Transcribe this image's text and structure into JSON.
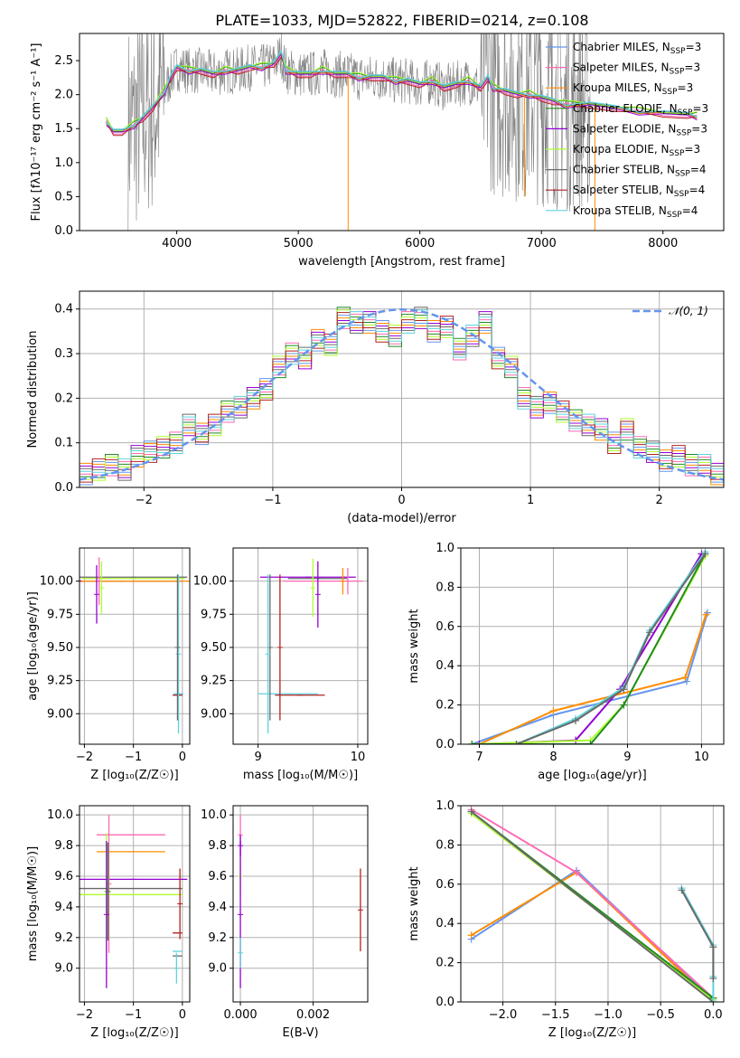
{
  "figure": {
    "title": "PLATE=1033, MJD=52822, FIBERID=0214, z=0.108",
    "series_colors": [
      "#6495ED",
      "#FF69B4",
      "#FF8C00",
      "#228B22",
      "#9400D3",
      "#ADFF2F",
      "#696969",
      "#B22222",
      "#5FD3DB"
    ]
  },
  "chart_data": [
    {
      "type": "line",
      "title": "PLATE=1033, MJD=52822, FIBERID=0214, z=0.108",
      "xlabel": "wavelength [Angstrom, rest frame]",
      "ylabel": "Flux [fλ10⁻¹⁷ erg cm⁻² s⁻¹ A⁻¹]",
      "xlim": [
        3200,
        8500
      ],
      "ylim": [
        0,
        2.9
      ],
      "xticks": [
        4000,
        5000,
        6000,
        7000,
        8000
      ],
      "yticks": [
        0.0,
        0.5,
        1.0,
        1.5,
        2.0,
        2.5
      ],
      "grid": false,
      "legend_placement": "upper right",
      "legend": [
        {
          "label": "Chabrier MILES, N",
          "sub": "SSP",
          "suffix": "=3",
          "color": "#6495ED"
        },
        {
          "label": "Salpeter MILES, N",
          "sub": "SSP",
          "suffix": "=3",
          "color": "#FF69B4"
        },
        {
          "label": "Kroupa MILES, N",
          "sub": "SSP",
          "suffix": "=3",
          "color": "#FF8C00"
        },
        {
          "label": "Chabrier ELODIE, N",
          "sub": "SSP",
          "suffix": "=3",
          "color": "#228B22"
        },
        {
          "label": "Salpeter ELODIE, N",
          "sub": "SSP",
          "suffix": "=3",
          "color": "#9400D3"
        },
        {
          "label": "Kroupa ELODIE, N",
          "sub": "SSP",
          "suffix": "=3",
          "color": "#ADFF2F"
        },
        {
          "label": "Chabrier STELIB, N",
          "sub": "SSP",
          "suffix": "=4",
          "color": "#696969"
        },
        {
          "label": "Salpeter STELIB, N",
          "sub": "SSP",
          "suffix": "=4",
          "color": "#B22222"
        },
        {
          "label": "Kroupa STELIB, N",
          "sub": "SSP",
          "suffix": "=4",
          "color": "#5FD3DB"
        }
      ],
      "model_curve": {
        "x": [
          3420,
          3480,
          3550,
          3650,
          3720,
          3800,
          3900,
          3950,
          4000,
          4100,
          4200,
          4300,
          4400,
          4500,
          4600,
          4700,
          4800,
          4860,
          4900,
          5000,
          5100,
          5200,
          5300,
          5400,
          5500,
          5600,
          5700,
          5800,
          5900,
          6000,
          6100,
          6200,
          6300,
          6400,
          6500,
          6560,
          6600,
          6700,
          6800,
          6900,
          7000,
          7100,
          7200,
          7400,
          7600,
          7800,
          8000,
          8200,
          8280
        ],
        "y": [
          1.6,
          1.45,
          1.45,
          1.55,
          1.65,
          1.8,
          2.05,
          2.25,
          2.4,
          2.35,
          2.35,
          2.3,
          2.35,
          2.35,
          2.4,
          2.4,
          2.45,
          2.6,
          2.35,
          2.3,
          2.3,
          2.35,
          2.3,
          2.3,
          2.25,
          2.25,
          2.25,
          2.2,
          2.2,
          2.15,
          2.2,
          2.1,
          2.15,
          2.2,
          2.1,
          2.25,
          2.1,
          2.05,
          2.0,
          2.0,
          1.95,
          1.9,
          1.85,
          1.85,
          1.8,
          1.75,
          1.72,
          1.7,
          1.68
        ]
      }
    },
    {
      "type": "bar",
      "xlabel": "(data-model)/error",
      "ylabel": "Normed distribution",
      "xlim": [
        -2.5,
        2.5
      ],
      "ylim": [
        0,
        0.44
      ],
      "xticks": [
        -2,
        -1,
        0,
        1,
        2
      ],
      "yticks": [
        0.0,
        0.1,
        0.2,
        0.3,
        0.4
      ],
      "grid": true,
      "legend_placement": "upper right",
      "reference_curve": {
        "label": "𝒩(0, 1)",
        "mean": 0,
        "sigma": 1,
        "color": "#6495ED"
      },
      "bin_centers": [
        -2.45,
        -2.35,
        -2.25,
        -2.15,
        -2.05,
        -1.95,
        -1.85,
        -1.75,
        -1.65,
        -1.55,
        -1.45,
        -1.35,
        -1.25,
        -1.15,
        -1.05,
        -0.95,
        -0.85,
        -0.75,
        -0.65,
        -0.55,
        -0.45,
        -0.35,
        -0.25,
        -0.15,
        -0.05,
        0.05,
        0.15,
        0.25,
        0.35,
        0.45,
        0.55,
        0.65,
        0.75,
        0.85,
        0.95,
        1.05,
        1.15,
        1.25,
        1.35,
        1.45,
        1.55,
        1.65,
        1.75,
        1.85,
        1.95,
        2.05,
        2.15,
        2.25,
        2.35,
        2.45
      ],
      "counts": [
        0.03,
        0.04,
        0.05,
        0.04,
        0.07,
        0.08,
        0.09,
        0.1,
        0.14,
        0.12,
        0.14,
        0.17,
        0.18,
        0.2,
        0.22,
        0.27,
        0.3,
        0.29,
        0.33,
        0.32,
        0.38,
        0.37,
        0.37,
        0.35,
        0.34,
        0.37,
        0.38,
        0.35,
        0.36,
        0.31,
        0.34,
        0.37,
        0.29,
        0.27,
        0.2,
        0.18,
        0.19,
        0.17,
        0.15,
        0.14,
        0.13,
        0.1,
        0.13,
        0.09,
        0.08,
        0.06,
        0.07,
        0.05,
        0.05,
        0.03
      ]
    },
    {
      "type": "scatter",
      "xlabel": "Z [log₁₀(Z/Z☉)]",
      "ylabel": "age  [log₁₀(age/yr)]",
      "xlim": [
        -2.1,
        0.15
      ],
      "ylim": [
        8.77,
        10.25
      ],
      "xticks": [
        -2,
        -1,
        0
      ],
      "yticks": [
        9.0,
        9.25,
        9.5,
        9.75,
        10.0
      ],
      "grid": true,
      "points": [
        {
          "x": -1.25,
          "y": 10.0,
          "xerr": 1.25,
          "yerr": 0.0,
          "color": "#B22222"
        },
        {
          "x": -1.0,
          "y": 10.02,
          "xerr": 1.05,
          "yerr": 0.0,
          "color": "#ADFF2F"
        },
        {
          "x": -0.95,
          "y": 10.0,
          "xerr": 1.1,
          "yerr": 0.0,
          "color": "#FF8C00"
        },
        {
          "x": -1.0,
          "y": 10.03,
          "xerr": 1.1,
          "yerr": 0.0,
          "color": "#696969"
        },
        {
          "x": -1.7,
          "y": 10.0,
          "xerr": 0.0,
          "yerr": 0.18,
          "color": "#FF69B4"
        },
        {
          "x": -1.65,
          "y": 9.95,
          "xerr": 0.0,
          "yerr": 0.2,
          "color": "#ADFF2F"
        },
        {
          "x": -1.75,
          "y": 9.9,
          "xerr": 0.0,
          "yerr": 0.22,
          "color": "#9400D3"
        },
        {
          "x": -0.1,
          "y": 9.14,
          "xerr": 0.1,
          "yerr": 0.0,
          "color": "#B22222"
        },
        {
          "x": -0.08,
          "y": 9.15,
          "xerr": 0.1,
          "yerr": 0.0,
          "color": "#5FD3DB"
        },
        {
          "x": -0.08,
          "y": 9.45,
          "xerr": 0.0,
          "yerr": 0.6,
          "color": "#5FD3DB"
        },
        {
          "x": -0.1,
          "y": 9.5,
          "xerr": 0.0,
          "yerr": 0.55,
          "color": "#696969"
        }
      ]
    },
    {
      "type": "scatter",
      "xlabel": "mass [log₁₀(M/M☉)]",
      "ylabel": "",
      "xlim": [
        8.75,
        10.1
      ],
      "ylim": [
        8.77,
        10.25
      ],
      "xticks": [
        9,
        10
      ],
      "yticks": [
        9.0,
        9.25,
        9.5,
        9.75,
        10.0
      ],
      "grid": true,
      "points": [
        {
          "x": 9.5,
          "y": 10.03,
          "xerr": 0.48,
          "yerr": 0.0,
          "color": "#9400D3"
        },
        {
          "x": 9.65,
          "y": 10.0,
          "xerr": 0.4,
          "yerr": 0.0,
          "color": "#FF69B4"
        },
        {
          "x": 9.6,
          "y": 10.02,
          "xerr": 0.3,
          "yerr": 0.0,
          "color": "#696969"
        },
        {
          "x": 9.3,
          "y": 9.15,
          "xerr": 0.3,
          "yerr": 0.0,
          "color": "#5FD3DB"
        },
        {
          "x": 9.42,
          "y": 9.14,
          "xerr": 0.25,
          "yerr": 0.0,
          "color": "#B22222"
        },
        {
          "x": 9.12,
          "y": 9.5,
          "xerr": 0.0,
          "yerr": 0.55,
          "color": "#696969"
        },
        {
          "x": 9.22,
          "y": 9.5,
          "xerr": 0.0,
          "yerr": 0.55,
          "color": "#B22222"
        },
        {
          "x": 9.1,
          "y": 9.45,
          "xerr": 0.0,
          "yerr": 0.6,
          "color": "#5FD3DB"
        },
        {
          "x": 9.55,
          "y": 9.95,
          "xerr": 0.0,
          "yerr": 0.22,
          "color": "#ADFF2F"
        },
        {
          "x": 9.6,
          "y": 9.9,
          "xerr": 0.0,
          "yerr": 0.25,
          "color": "#9400D3"
        },
        {
          "x": 9.85,
          "y": 10.0,
          "xerr": 0.0,
          "yerr": 0.1,
          "color": "#FF8C00"
        },
        {
          "x": 9.9,
          "y": 10.0,
          "xerr": 0.0,
          "yerr": 0.1,
          "color": "#FF69B4"
        }
      ]
    },
    {
      "type": "line",
      "xlabel": "age  [log₁₀(age/yr)]",
      "ylabel": "mass weight",
      "xlim": [
        6.75,
        10.3
      ],
      "ylim": [
        0,
        1.0
      ],
      "xticks": [
        7,
        8,
        9,
        10
      ],
      "yticks": [
        0.0,
        0.2,
        0.4,
        0.6,
        0.8,
        1.0
      ],
      "grid": true,
      "series": [
        {
          "color": "#6495ED",
          "x": [
            6.9,
            8.0,
            9.8,
            10.08
          ],
          "y": [
            0.0,
            0.15,
            0.32,
            0.67
          ]
        },
        {
          "color": "#FF8C00",
          "x": [
            7.0,
            8.0,
            9.78,
            10.06
          ],
          "y": [
            0.0,
            0.17,
            0.34,
            0.66
          ]
        },
        {
          "color": "#9400D3",
          "x": [
            7.0,
            8.3,
            8.9,
            10.0
          ],
          "y": [
            0.0,
            0.02,
            0.28,
            0.97
          ]
        },
        {
          "color": "#ADFF2F",
          "x": [
            6.9,
            8.5,
            8.95,
            10.05
          ],
          "y": [
            0.0,
            0.02,
            0.2,
            0.96
          ]
        },
        {
          "color": "#228B22",
          "x": [
            6.9,
            8.5,
            8.95,
            10.05
          ],
          "y": [
            0.0,
            0.0,
            0.2,
            0.97
          ]
        },
        {
          "color": "#5FD3DB",
          "x": [
            7.5,
            8.3,
            8.95,
            9.3,
            10.05
          ],
          "y": [
            0.0,
            0.13,
            0.29,
            0.58,
            0.98
          ]
        },
        {
          "color": "#696969",
          "x": [
            7.5,
            8.3,
            8.95,
            9.3,
            10.05
          ],
          "y": [
            0.0,
            0.12,
            0.28,
            0.57,
            0.97
          ]
        }
      ]
    },
    {
      "type": "scatter",
      "xlabel": "Z [log₁₀(Z/Z☉)]",
      "ylabel": "mass [log₁₀(M/M☉)]",
      "xlim": [
        -2.1,
        0.15
      ],
      "ylim": [
        8.78,
        10.06
      ],
      "xticks": [
        -2,
        -1,
        0
      ],
      "yticks": [
        9.0,
        9.2,
        9.4,
        9.6,
        9.8,
        10.0
      ],
      "grid": true,
      "points": [
        {
          "x": -1.05,
          "y": 9.87,
          "xerr": 0.7,
          "yerr": 0.0,
          "color": "#FF69B4"
        },
        {
          "x": -1.05,
          "y": 9.76,
          "xerr": 0.7,
          "yerr": 0.0,
          "color": "#FF8C00"
        },
        {
          "x": -1.0,
          "y": 9.58,
          "xerr": 1.1,
          "yerr": 0.0,
          "color": "#9400D3"
        },
        {
          "x": -1.05,
          "y": 9.52,
          "xerr": 1.05,
          "yerr": 0.0,
          "color": "#696969"
        },
        {
          "x": -1.05,
          "y": 9.48,
          "xerr": 1.05,
          "yerr": 0.0,
          "color": "#ADFF2F"
        },
        {
          "x": -1.5,
          "y": 9.55,
          "xerr": 0.0,
          "yerr": 0.45,
          "color": "#FF69B4"
        },
        {
          "x": -1.55,
          "y": 9.5,
          "xerr": 0.0,
          "yerr": 0.38,
          "color": "#ADFF2F"
        },
        {
          "x": -1.52,
          "y": 9.5,
          "xerr": 0.0,
          "yerr": 0.32,
          "color": "#228B22"
        },
        {
          "x": -1.55,
          "y": 9.35,
          "xerr": 0.0,
          "yerr": 0.48,
          "color": "#9400D3"
        },
        {
          "x": -0.1,
          "y": 9.23,
          "xerr": 0.1,
          "yerr": 0.0,
          "color": "#B22222"
        },
        {
          "x": -0.1,
          "y": 9.11,
          "xerr": 0.1,
          "yerr": 0.0,
          "color": "#5FD3DB"
        },
        {
          "x": -0.1,
          "y": 9.08,
          "xerr": 0.1,
          "yerr": 0.0,
          "color": "#696969"
        },
        {
          "x": -0.05,
          "y": 9.42,
          "xerr": 0.0,
          "yerr": 0.23,
          "color": "#B22222"
        },
        {
          "x": -0.12,
          "y": 9.0,
          "xerr": 0.0,
          "yerr": 0.1,
          "color": "#5FD3DB"
        }
      ]
    },
    {
      "type": "scatter",
      "xlabel": "E(B-V)",
      "ylabel": "",
      "xlim": [
        -0.0002,
        0.0035
      ],
      "ylim": [
        8.78,
        10.06
      ],
      "xticks": [
        0.0,
        0.002
      ],
      "yticks": [
        9.0,
        9.2,
        9.4,
        9.6,
        9.8,
        10.0
      ],
      "grid": true,
      "points": [
        {
          "x": 0.0,
          "y": 9.87,
          "xerr": 0.0,
          "yerr": 0.13,
          "color": "#FF69B4"
        },
        {
          "x": 0.0,
          "y": 9.6,
          "xerr": 0.0,
          "yerr": 0.12,
          "color": "#ADFF2F"
        },
        {
          "x": 0.0,
          "y": 9.35,
          "xerr": 0.0,
          "yerr": 0.48,
          "color": "#9400D3"
        },
        {
          "x": 0.0,
          "y": 9.1,
          "xerr": 0.0,
          "yerr": 0.1,
          "color": "#5FD3DB"
        },
        {
          "x": 0.0,
          "y": 9.8,
          "xerr": 0.0,
          "yerr": 0.07,
          "color": "#9400D3"
        },
        {
          "x": 0.0033,
          "y": 9.38,
          "xerr": 0.0,
          "yerr": 0.27,
          "color": "#B22222"
        }
      ]
    },
    {
      "type": "line",
      "xlabel": "Z [log₁₀(Z/Z☉)]",
      "ylabel": "mass weight",
      "xlim": [
        -2.4,
        0.1
      ],
      "ylim": [
        0,
        1.0
      ],
      "xticks": [
        -2.0,
        -1.5,
        -1.0,
        -0.5,
        0.0
      ],
      "yticks": [
        0.0,
        0.2,
        0.4,
        0.6,
        0.8,
        1.0
      ],
      "grid": true,
      "series": [
        {
          "color": "#6495ED",
          "x": [
            -2.3,
            -1.3,
            0.0
          ],
          "y": [
            0.32,
            0.67,
            0.01
          ]
        },
        {
          "color": "#FF8C00",
          "x": [
            -2.3,
            -1.3,
            0.0
          ],
          "y": [
            0.34,
            0.66,
            0.0
          ]
        },
        {
          "color": "#FF69B4",
          "x": [
            -2.3,
            -1.3,
            0.0
          ],
          "y": [
            0.98,
            0.66,
            0.02
          ]
        },
        {
          "color": "#ADFF2F",
          "x": [
            -2.3,
            0.0
          ],
          "y": [
            0.96,
            0.01
          ]
        },
        {
          "color": "#228B22",
          "x": [
            -2.3,
            0.0
          ],
          "y": [
            0.97,
            0.02
          ]
        },
        {
          "color": "#696969",
          "x": [
            -2.3,
            0.0
          ],
          "y": [
            0.97,
            0.0
          ]
        },
        {
          "color": "#5FD3DB",
          "x": [
            -0.3,
            0.0,
            0.0,
            0.0
          ],
          "y": [
            0.58,
            0.29,
            0.13,
            0.0
          ]
        },
        {
          "color": "#696969",
          "x": [
            -0.3,
            0.0,
            0.0
          ],
          "y": [
            0.57,
            0.28,
            0.12
          ]
        }
      ]
    }
  ]
}
